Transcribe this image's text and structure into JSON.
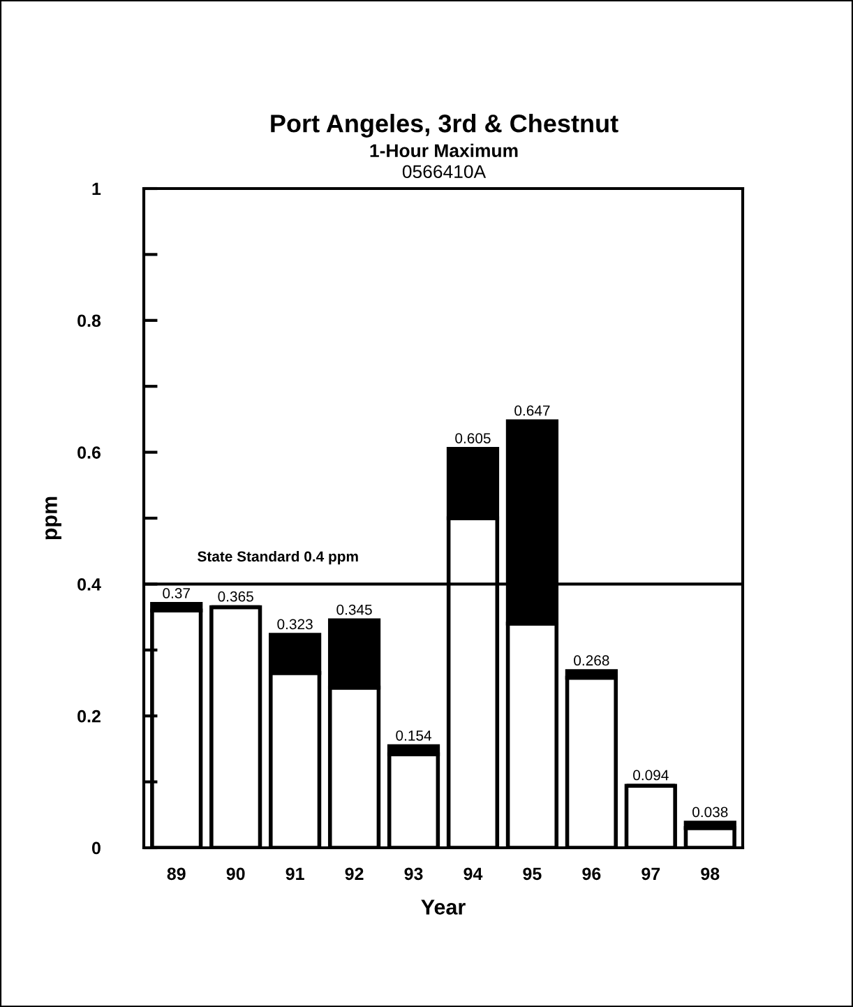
{
  "chart_data": {
    "type": "bar",
    "stacked": true,
    "title": "Port Angeles, 3rd & Chestnut",
    "subtitle": "1-Hour Maximum",
    "annotations": [
      "0566410A"
    ],
    "xlabel": "Year",
    "ylabel": "ppm",
    "categories": [
      "89",
      "90",
      "91",
      "92",
      "93",
      "94",
      "95",
      "96",
      "97",
      "98"
    ],
    "series": [
      {
        "color": "#ffffff",
        "values": [
          0.36,
          0.365,
          0.265,
          0.243,
          0.142,
          0.5,
          0.34,
          0.258,
          0.094,
          0.03
        ]
      },
      {
        "color": "#000000",
        "values": [
          0.01,
          0,
          0.058,
          0.102,
          0.012,
          0.105,
          0.307,
          0.01,
          0,
          0.008
        ]
      }
    ],
    "totals": [
      "0.37",
      "0.365",
      "0.323",
      "0.345",
      "0.154",
      "0.605",
      "0.647",
      "0.268",
      "0.094",
      "0.038"
    ],
    "ylim": [
      0,
      1
    ],
    "yticks": [
      0,
      {
        "value": 0.1,
        "label": null
      },
      0.2,
      {
        "value": 0.3,
        "label": null
      },
      0.4,
      {
        "value": 0.5,
        "label": null
      },
      0.6,
      {
        "value": 0.7,
        "label": null
      },
      0.8,
      {
        "value": 0.9,
        "label": null
      },
      1
    ],
    "ref_lines": [
      {
        "axis": "y",
        "value": 0.4,
        "label": "State Standard 0.4 ppm",
        "color": "#000000"
      }
    ],
    "grid": false,
    "legend": false
  }
}
